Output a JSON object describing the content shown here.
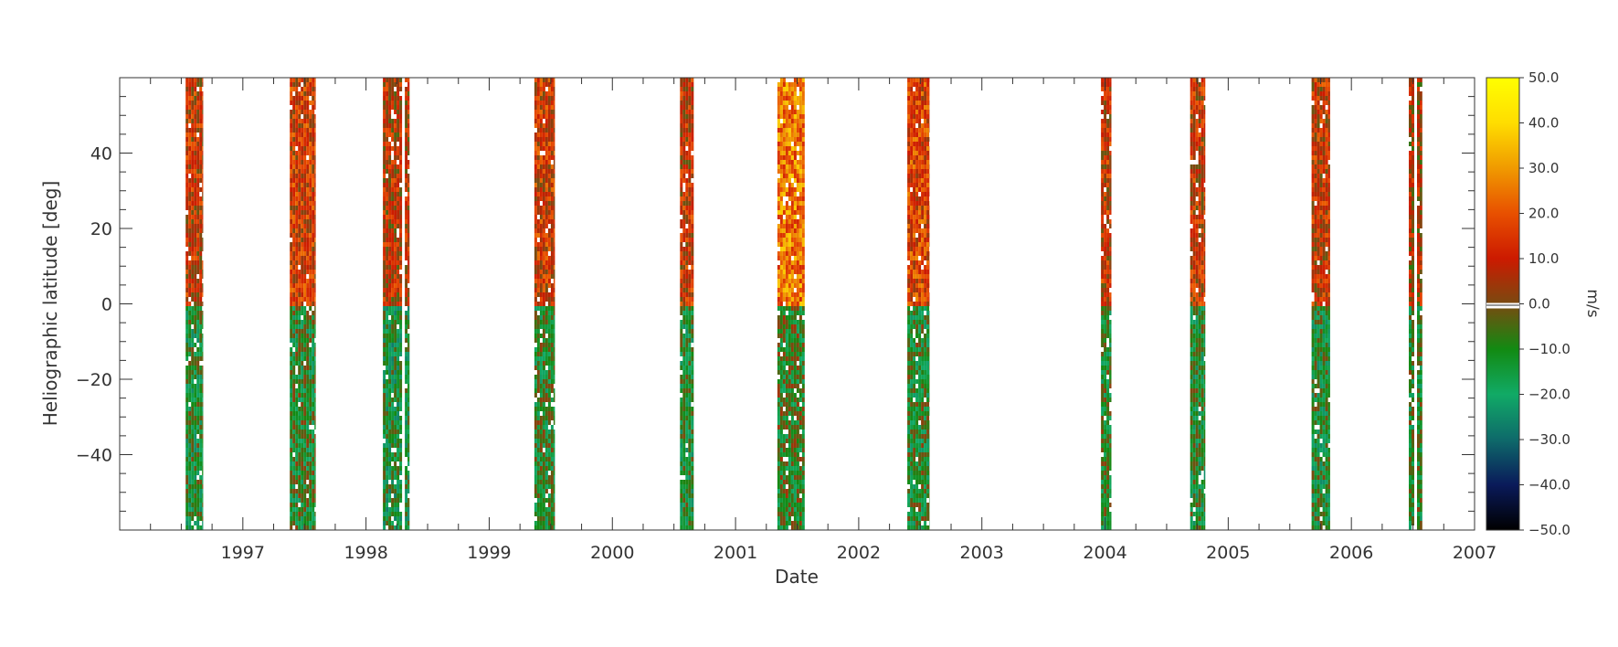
{
  "chart_data": {
    "type": "heatmap",
    "title": "",
    "xlabel": "Date",
    "ylabel": "Heliographic latitude [deg]",
    "xlim": [
      "1996-01-01",
      "2007-01-01"
    ],
    "ylim": [
      -60,
      60
    ],
    "x_ticks": [
      "1997",
      "1998",
      "1999",
      "2000",
      "2001",
      "2002",
      "2003",
      "2004",
      "2005",
      "2006",
      "2007"
    ],
    "y_ticks": [
      "40",
      "20",
      "0",
      "−20",
      "−40"
    ],
    "y_tick_values": [
      40,
      20,
      0,
      -20,
      -40
    ],
    "colorbar": {
      "label": "m/s",
      "range": [
        -50,
        50
      ],
      "tick_labels": [
        "50.0",
        "40.0",
        "30.0",
        "20.0",
        "10.0",
        "0.0",
        "−10.0",
        "−20.0",
        "−30.0",
        "−40.0",
        "−50.0"
      ],
      "tick_values": [
        50,
        40,
        30,
        20,
        10,
        0,
        -10,
        -20,
        -30,
        -40,
        -50
      ],
      "colors": [
        "#000000",
        "#0a1a5a",
        "#0e6a6a",
        "#11aa66",
        "#128a12",
        "#7a4a10",
        "#cc1a00",
        "#e85000",
        "#f09a00",
        "#ffdd00",
        "#ffff00"
      ]
    },
    "observation_bands": [
      {
        "start": "1996-07-15",
        "end": "1996-09-05",
        "north_mean": 10,
        "south_mean": -12
      },
      {
        "start": "1997-05-20",
        "end": "1997-08-05",
        "north_mean": 12,
        "south_mean": -10
      },
      {
        "start": "1998-02-20",
        "end": "1998-05-10",
        "north_mean": 8,
        "south_mean": -14
      },
      {
        "start": "1999-05-15",
        "end": "1999-07-15",
        "north_mean": 12,
        "south_mean": -10
      },
      {
        "start": "2000-07-20",
        "end": "2000-08-30",
        "north_mean": 10,
        "south_mean": -12
      },
      {
        "start": "2001-05-05",
        "end": "2001-07-25",
        "north_mean": 25,
        "south_mean": -8
      },
      {
        "start": "2002-05-25",
        "end": "2002-07-30",
        "north_mean": 15,
        "south_mean": -10
      },
      {
        "start": "2003-12-20",
        "end": "2004-01-20",
        "north_mean": 10,
        "south_mean": -10
      },
      {
        "start": "2004-09-10",
        "end": "2004-10-25",
        "north_mean": 10,
        "south_mean": -12
      },
      {
        "start": "2005-09-05",
        "end": "2005-10-30",
        "north_mean": 10,
        "south_mean": -12
      },
      {
        "start": "2006-06-20",
        "end": "2006-07-30",
        "north_mean": 5,
        "south_mean": -10
      }
    ]
  }
}
